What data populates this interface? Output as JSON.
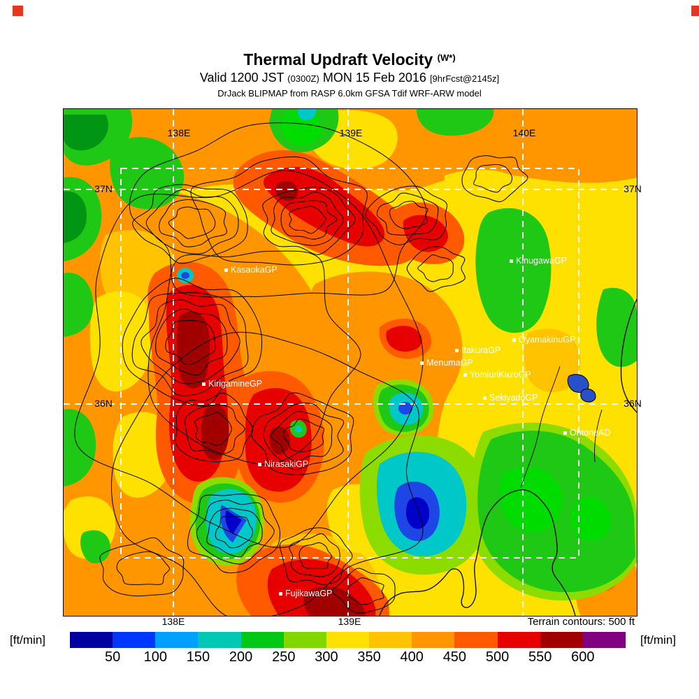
{
  "header": {
    "title": "Thermal Updraft Velocity",
    "title_suffix": "(W*)",
    "valid_prefix": "Valid 1200 JST",
    "valid_zulu": "(0300Z)",
    "valid_date": "MON 15 Feb 2016",
    "valid_fcst": "[9hrFcst@2145z]",
    "model_line": "DrJack BLIPMAP from RASP 6.0km GFSA Tdif WRF-ARW model"
  },
  "map": {
    "grid_labels": {
      "top": [
        "138E",
        "139E",
        "140E"
      ],
      "bottom": [
        "138E",
        "139E"
      ],
      "left": [
        "37N",
        "36N"
      ],
      "right": [
        "37N",
        "36N"
      ]
    },
    "sites": [
      {
        "name": "KasaokaGP"
      },
      {
        "name": "KinugawaGP"
      },
      {
        "name": "OyamakinuGP"
      },
      {
        "name": "ItakuraGP"
      },
      {
        "name": "MenumaGP"
      },
      {
        "name": "YomiuriKazoGP"
      },
      {
        "name": "SekiyadoGP"
      },
      {
        "name": "KirigamineGP"
      },
      {
        "name": "OhtoneAD"
      },
      {
        "name": "NirasakiGP"
      },
      {
        "name": "FujikawaGP"
      }
    ],
    "terrain_note": "Terrain contours: 500 ft"
  },
  "colorbar": {
    "unit_left": "[ft/min]",
    "unit_right": "[ft/min]",
    "ticks": [
      "50",
      "100",
      "150",
      "200",
      "250",
      "300",
      "350",
      "400",
      "450",
      "500",
      "550",
      "600"
    ],
    "colors": [
      "#0000A0",
      "#0037FF",
      "#00A0FF",
      "#00C8B4",
      "#00C814",
      "#82D700",
      "#FFE100",
      "#FFC300",
      "#FF9600",
      "#FF5A00",
      "#E60000",
      "#A00000",
      "#81007F"
    ]
  }
}
